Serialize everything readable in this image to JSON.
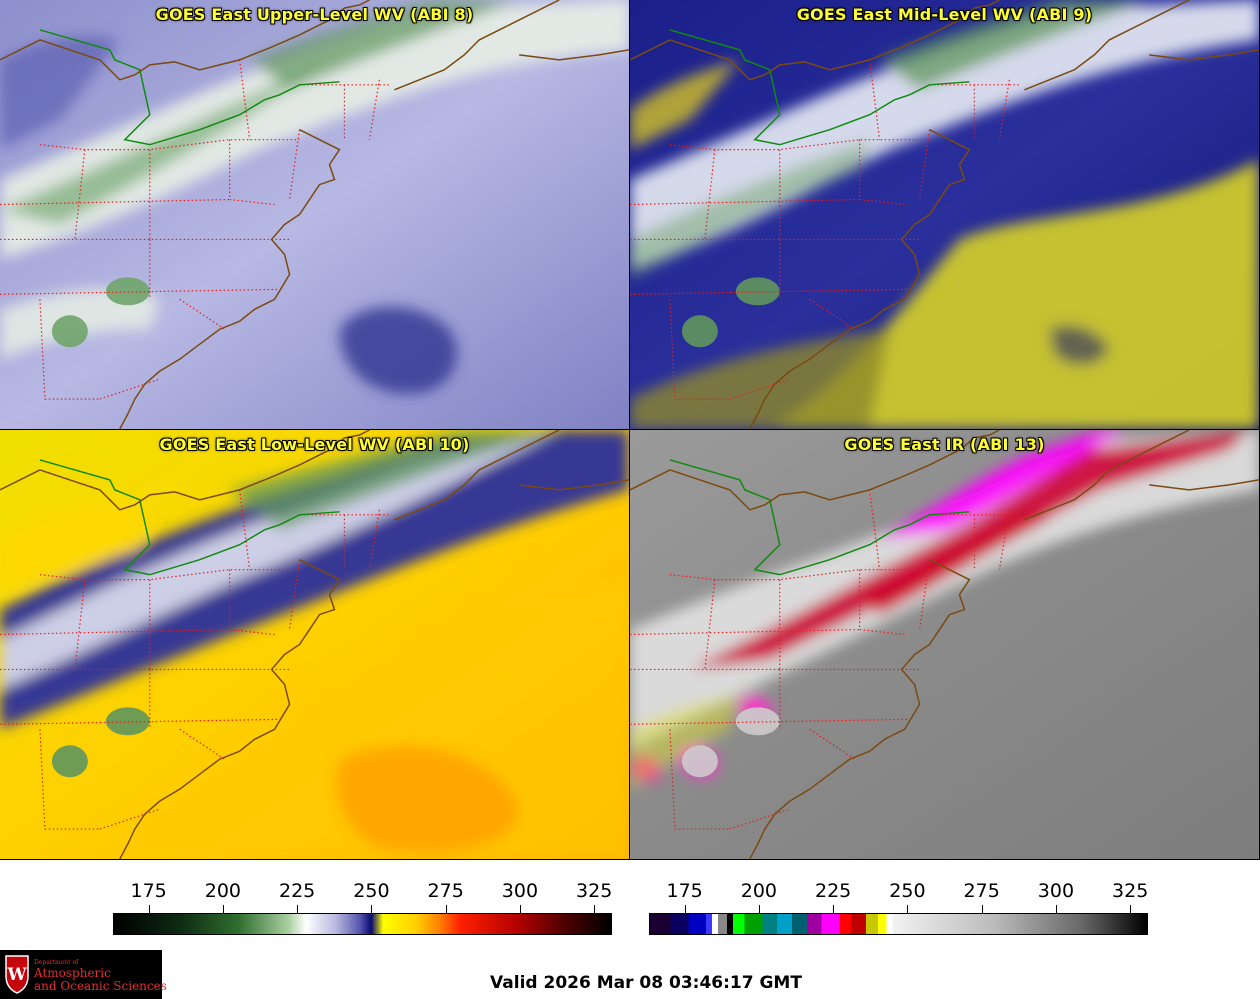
{
  "panels": [
    {
      "title": "GOES East Upper-Level WV (ABI 8)",
      "palette": "wv-upper"
    },
    {
      "title": "GOES East Mid-Level WV (ABI 9)",
      "palette": "wv-mid"
    },
    {
      "title": "GOES East Low-Level WV (ABI 10)",
      "palette": "wv-low"
    },
    {
      "title": "GOES East IR (ABI 13)",
      "palette": "ir"
    }
  ],
  "colorbars": {
    "wv": {
      "ticks": [
        "175",
        "200",
        "225",
        "250",
        "275",
        "300",
        "325"
      ],
      "range": [
        163,
        331
      ],
      "stops": [
        {
          "v": 163,
          "c": "#000000"
        },
        {
          "v": 185,
          "c": "#0d2a12"
        },
        {
          "v": 205,
          "c": "#2f6e2f"
        },
        {
          "v": 222,
          "c": "#a9cfa0"
        },
        {
          "v": 228,
          "c": "#ffffff"
        },
        {
          "v": 238,
          "c": "#b8b8e0"
        },
        {
          "v": 246,
          "c": "#5858b0"
        },
        {
          "v": 250,
          "c": "#0a0a70"
        },
        {
          "v": 254,
          "c": "#ffff00"
        },
        {
          "v": 265,
          "c": "#ffd000"
        },
        {
          "v": 273,
          "c": "#ff8000"
        },
        {
          "v": 280,
          "c": "#ff2000"
        },
        {
          "v": 300,
          "c": "#b00000"
        },
        {
          "v": 315,
          "c": "#500000"
        },
        {
          "v": 331,
          "c": "#000000"
        }
      ]
    },
    "ir": {
      "ticks": [
        "175",
        "200",
        "225",
        "250",
        "275",
        "300",
        "325"
      ],
      "range": [
        163,
        331
      ],
      "segments": [
        {
          "from": 163,
          "to": 170,
          "c": "#1a0030"
        },
        {
          "from": 170,
          "to": 176,
          "c": "#0a0060"
        },
        {
          "from": 176,
          "to": 182,
          "c": "#0000c0"
        },
        {
          "from": 182,
          "to": 184,
          "c": "#3a3aff"
        },
        {
          "from": 184,
          "to": 186,
          "c": "#ffffff"
        },
        {
          "from": 186,
          "to": 189,
          "c": "#888888"
        },
        {
          "from": 189,
          "to": 191,
          "c": "#000000"
        },
        {
          "from": 191,
          "to": 195,
          "c": "#00ff00"
        },
        {
          "from": 195,
          "to": 201,
          "c": "#00a000"
        },
        {
          "from": 201,
          "to": 206,
          "c": "#008080"
        },
        {
          "from": 206,
          "to": 211,
          "c": "#00a0c8"
        },
        {
          "from": 211,
          "to": 216,
          "c": "#006070"
        },
        {
          "from": 216,
          "to": 221,
          "c": "#a000a0"
        },
        {
          "from": 221,
          "to": 227,
          "c": "#ff00ff"
        },
        {
          "from": 227,
          "to": 231,
          "c": "#ff0000"
        },
        {
          "from": 231,
          "to": 236,
          "c": "#c00000"
        },
        {
          "from": 236,
          "to": 240,
          "c": "#c8c800"
        },
        {
          "from": 240,
          "to": 243,
          "c": "#ffff00"
        },
        {
          "from": 243,
          "to": 245,
          "c": "#ffffff"
        },
        {
          "from": 245,
          "to": 331,
          "c": "gradient"
        }
      ]
    }
  },
  "logo": {
    "line1": "Department of",
    "line2": "Atmospheric",
    "line3": "and Oceanic Sciences",
    "crest_letter": "W"
  },
  "valid_time": "Valid 2026 Mar 08 03:46:17 GMT"
}
